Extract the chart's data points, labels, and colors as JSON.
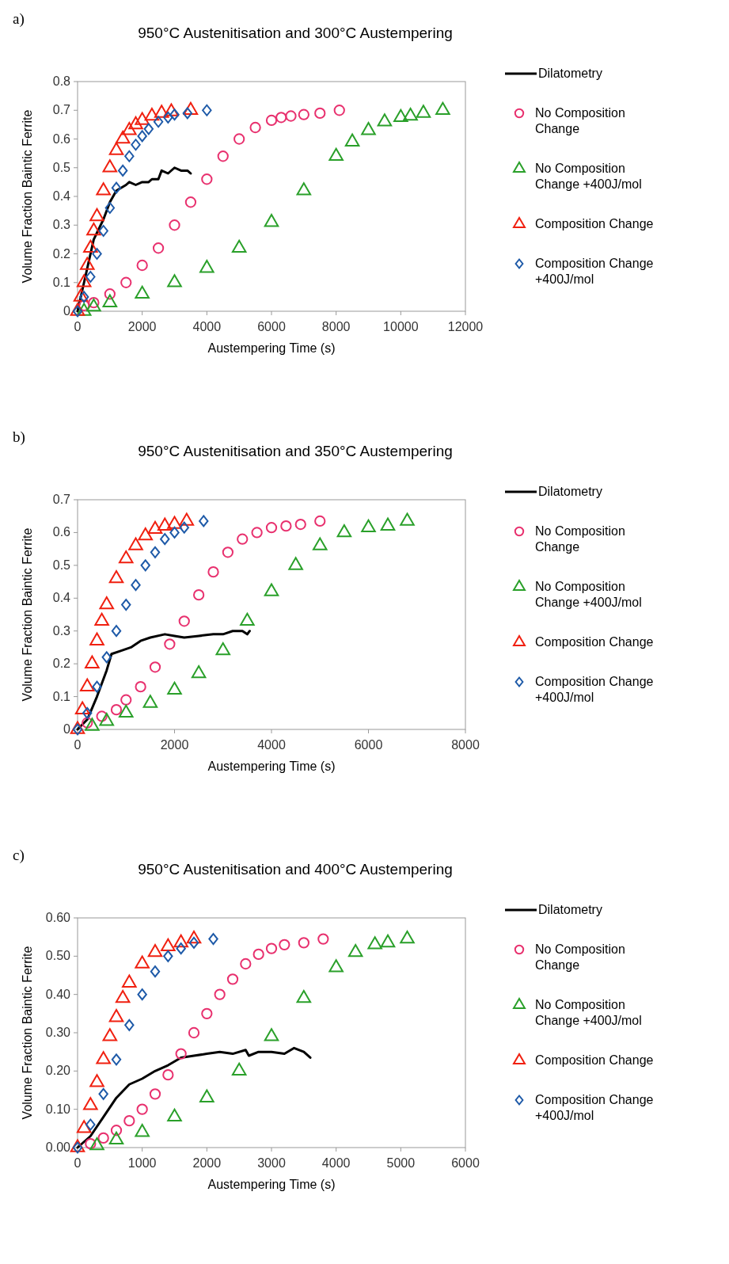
{
  "chart_data": [
    {
      "type": "scatter",
      "title": "950°C Austenitisation and 300°C Austempering",
      "xlabel": "Austempering Time (s)",
      "ylabel": "Volume Fraction Baintic Ferrite",
      "annotations": [
        "a)"
      ],
      "xlim": [
        0,
        12000
      ],
      "xticks": [
        0,
        2000,
        4000,
        6000,
        8000,
        10000,
        12000
      ],
      "ylim": [
        0,
        0.8
      ],
      "yticks": [
        0,
        0.1,
        0.2,
        0.3,
        0.4,
        0.5,
        0.6,
        0.7,
        0.8
      ],
      "grid": false,
      "legend": "right",
      "series": [
        {
          "name": "Dilatometry",
          "type": "line",
          "marker": "none",
          "line_style": "solid",
          "color": "#000000",
          "x": [
            0,
            200,
            500,
            800,
            1000,
            1200,
            1500,
            1600,
            1800,
            2000,
            2200,
            2300,
            2500,
            2600,
            2800,
            3000,
            3200,
            3400,
            3500
          ],
          "values": [
            0,
            0.1,
            0.25,
            0.32,
            0.38,
            0.42,
            0.44,
            0.45,
            0.44,
            0.45,
            0.45,
            0.46,
            0.46,
            0.49,
            0.48,
            0.5,
            0.49,
            0.49,
            0.48
          ]
        },
        {
          "name": "No Composition Change",
          "marker": "circle",
          "color": "#e8306e",
          "x": [
            200,
            500,
            1000,
            1500,
            2000,
            2500,
            3000,
            3500,
            4000,
            4500,
            5000,
            5500,
            6000,
            6300,
            6600,
            7000,
            7500,
            8100
          ],
          "values": [
            0.02,
            0.03,
            0.06,
            0.1,
            0.16,
            0.22,
            0.3,
            0.38,
            0.46,
            0.54,
            0.6,
            0.64,
            0.665,
            0.675,
            0.68,
            0.685,
            0.69,
            0.7
          ]
        },
        {
          "name": "No Composition Change +400J/mol",
          "marker": "triangle",
          "color": "#2aa02a",
          "x": [
            200,
            500,
            1000,
            2000,
            3000,
            4000,
            5000,
            6000,
            7000,
            8000,
            8500,
            9000,
            9500,
            10000,
            10300,
            10700,
            11300
          ],
          "values": [
            0,
            0.015,
            0.03,
            0.06,
            0.1,
            0.15,
            0.22,
            0.31,
            0.42,
            0.54,
            0.59,
            0.63,
            0.66,
            0.675,
            0.68,
            0.69,
            0.7
          ]
        },
        {
          "name": "Composition Change",
          "marker": "triangle",
          "color": "#f02010",
          "x": [
            0,
            100,
            200,
            300,
            400,
            500,
            600,
            800,
            1000,
            1200,
            1400,
            1600,
            1800,
            2000,
            2300,
            2600,
            2900,
            3500
          ],
          "values": [
            0,
            0.05,
            0.1,
            0.16,
            0.22,
            0.28,
            0.33,
            0.42,
            0.5,
            0.56,
            0.6,
            0.63,
            0.65,
            0.665,
            0.68,
            0.69,
            0.695,
            0.7
          ]
        },
        {
          "name": "Composition Change +400J/mol",
          "marker": "diamond",
          "color": "#1e5aa8",
          "x": [
            0,
            200,
            400,
            600,
            800,
            1000,
            1200,
            1400,
            1600,
            1800,
            2000,
            2200,
            2500,
            2800,
            3000,
            3400,
            4000
          ],
          "values": [
            0,
            0.05,
            0.12,
            0.2,
            0.28,
            0.36,
            0.43,
            0.49,
            0.54,
            0.58,
            0.61,
            0.635,
            0.66,
            0.675,
            0.685,
            0.69,
            0.7
          ]
        }
      ]
    },
    {
      "type": "scatter",
      "title": "950°C Austenitisation and 350°C Austempering",
      "xlabel": "Austempering Time (s)",
      "ylabel": "Volume Fraction Baintic Ferrite",
      "annotations": [
        "b)"
      ],
      "xlim": [
        0,
        8000
      ],
      "xticks": [
        0,
        2000,
        4000,
        6000,
        8000
      ],
      "ylim": [
        0,
        0.7
      ],
      "yticks": [
        0,
        0.1,
        0.2,
        0.3,
        0.4,
        0.5,
        0.6,
        0.7
      ],
      "grid": false,
      "legend": "right",
      "series": [
        {
          "name": "Dilatometry",
          "type": "line",
          "marker": "none",
          "line_style": "solid",
          "color": "#000000",
          "x": [
            0,
            200,
            400,
            600,
            700,
            900,
            1100,
            1300,
            1500,
            1800,
            2000,
            2200,
            2500,
            2800,
            3000,
            3200,
            3400,
            3500,
            3550
          ],
          "values": [
            0,
            0.03,
            0.1,
            0.18,
            0.23,
            0.24,
            0.25,
            0.27,
            0.28,
            0.29,
            0.285,
            0.28,
            0.285,
            0.29,
            0.29,
            0.3,
            0.3,
            0.29,
            0.3
          ]
        },
        {
          "name": "No Composition Change",
          "marker": "circle",
          "color": "#e8306e",
          "x": [
            200,
            500,
            800,
            1000,
            1300,
            1600,
            1900,
            2200,
            2500,
            2800,
            3100,
            3400,
            3700,
            4000,
            4300,
            4600,
            5000
          ],
          "values": [
            0.02,
            0.04,
            0.06,
            0.09,
            0.13,
            0.19,
            0.26,
            0.33,
            0.41,
            0.48,
            0.54,
            0.58,
            0.6,
            0.615,
            0.62,
            0.625,
            0.635
          ]
        },
        {
          "name": "No Composition Change +400J/mol",
          "marker": "triangle",
          "color": "#2aa02a",
          "x": [
            300,
            600,
            1000,
            1500,
            2000,
            2500,
            3000,
            3500,
            4000,
            4500,
            5000,
            5500,
            6000,
            6400,
            6800
          ],
          "values": [
            0.01,
            0.025,
            0.05,
            0.08,
            0.12,
            0.17,
            0.24,
            0.33,
            0.42,
            0.5,
            0.56,
            0.6,
            0.615,
            0.62,
            0.635
          ]
        },
        {
          "name": "Composition Change",
          "marker": "triangle",
          "color": "#f02010",
          "x": [
            0,
            100,
            200,
            300,
            400,
            500,
            600,
            800,
            1000,
            1200,
            1400,
            1600,
            1800,
            2000,
            2250
          ],
          "values": [
            0,
            0.06,
            0.13,
            0.2,
            0.27,
            0.33,
            0.38,
            0.46,
            0.52,
            0.56,
            0.59,
            0.61,
            0.62,
            0.625,
            0.635
          ]
        },
        {
          "name": "Composition Change +400J/mol",
          "marker": "diamond",
          "color": "#1e5aa8",
          "x": [
            0,
            200,
            400,
            600,
            800,
            1000,
            1200,
            1400,
            1600,
            1800,
            2000,
            2200,
            2600
          ],
          "values": [
            0,
            0.05,
            0.13,
            0.22,
            0.3,
            0.38,
            0.44,
            0.5,
            0.54,
            0.58,
            0.6,
            0.615,
            0.635
          ]
        }
      ]
    },
    {
      "type": "scatter",
      "title": "950°C Austenitisation and 400°C Austempering",
      "xlabel": "Austempering Time (s)",
      "ylabel": "Volume Fraction Baintic Ferrite",
      "annotations": [
        "c)"
      ],
      "xlim": [
        0,
        6000
      ],
      "xticks": [
        0,
        1000,
        2000,
        3000,
        4000,
        5000,
        6000
      ],
      "ylim": [
        0,
        0.6
      ],
      "yticks": [
        {
          "value": 0,
          "label": "0.00"
        },
        {
          "value": 0.1,
          "label": "0.10"
        },
        {
          "value": 0.2,
          "label": "0.20"
        },
        {
          "value": 0.3,
          "label": "0.30"
        },
        {
          "value": 0.4,
          "label": "0.40"
        },
        {
          "value": 0.5,
          "label": "0.50"
        },
        {
          "value": 0.6,
          "label": "0.60"
        }
      ],
      "grid": false,
      "legend": "right",
      "series": [
        {
          "name": "Dilatometry",
          "type": "line",
          "marker": "none",
          "line_style": "solid",
          "color": "#000000",
          "x": [
            0,
            200,
            400,
            600,
            800,
            1000,
            1200,
            1400,
            1600,
            1800,
            2000,
            2200,
            2400,
            2600,
            2650,
            2800,
            3000,
            3200,
            3350,
            3500,
            3600
          ],
          "values": [
            0,
            0.03,
            0.08,
            0.13,
            0.165,
            0.18,
            0.2,
            0.215,
            0.235,
            0.24,
            0.245,
            0.25,
            0.245,
            0.255,
            0.24,
            0.25,
            0.25,
            0.245,
            0.26,
            0.25,
            0.235
          ]
        },
        {
          "name": "No Composition Change",
          "marker": "circle",
          "color": "#e8306e",
          "x": [
            200,
            400,
            600,
            800,
            1000,
            1200,
            1400,
            1600,
            1800,
            2000,
            2200,
            2400,
            2600,
            2800,
            3000,
            3200,
            3500,
            3800
          ],
          "values": [
            0.01,
            0.025,
            0.045,
            0.07,
            0.1,
            0.14,
            0.19,
            0.245,
            0.3,
            0.35,
            0.4,
            0.44,
            0.48,
            0.505,
            0.52,
            0.53,
            0.535,
            0.545
          ]
        },
        {
          "name": "No Composition Change +400J/mol",
          "marker": "triangle",
          "color": "#2aa02a",
          "x": [
            300,
            600,
            1000,
            1500,
            2000,
            2500,
            3000,
            3500,
            4000,
            4300,
            4600,
            4800,
            5100
          ],
          "values": [
            0.005,
            0.02,
            0.04,
            0.08,
            0.13,
            0.2,
            0.29,
            0.39,
            0.47,
            0.51,
            0.53,
            0.535,
            0.545
          ]
        },
        {
          "name": "Composition Change",
          "marker": "triangle",
          "color": "#f02010",
          "x": [
            0,
            100,
            200,
            300,
            400,
            500,
            600,
            700,
            800,
            1000,
            1200,
            1400,
            1600,
            1800
          ],
          "values": [
            0,
            0.05,
            0.11,
            0.17,
            0.23,
            0.29,
            0.34,
            0.39,
            0.43,
            0.48,
            0.51,
            0.525,
            0.535,
            0.545
          ]
        },
        {
          "name": "Composition Change +400J/mol",
          "marker": "diamond",
          "color": "#1e5aa8",
          "x": [
            0,
            200,
            400,
            600,
            800,
            1000,
            1200,
            1400,
            1600,
            1800,
            2100
          ],
          "values": [
            0,
            0.06,
            0.14,
            0.23,
            0.32,
            0.4,
            0.46,
            0.5,
            0.52,
            0.535,
            0.545
          ]
        }
      ]
    }
  ]
}
